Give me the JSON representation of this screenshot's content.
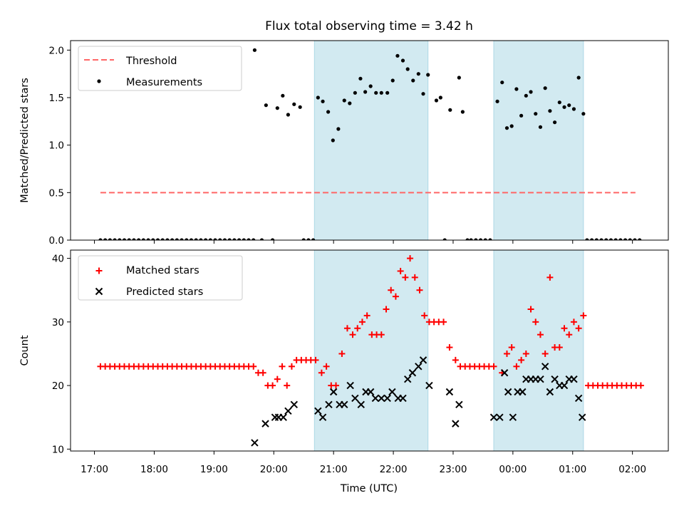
{
  "title": "Flux total observing time = 3.42 h",
  "xlabel": "Time (UTC)",
  "x_tick_labels": [
    "17:00",
    "18:00",
    "19:00",
    "20:00",
    "21:00",
    "22:00",
    "23:00",
    "00:00",
    "01:00",
    "02:00"
  ],
  "colors": {
    "shade": "#add8e6",
    "threshold": "#ff6666",
    "matched": "#ff0000",
    "predicted": "#000000",
    "measurement": "#000000"
  },
  "chart_data": [
    {
      "type": "scatter",
      "ylabel": "Matched/Predicted stars",
      "ylim": [
        0,
        2.1
      ],
      "y_ticks": [
        0.0,
        0.5,
        1.0,
        1.5,
        2.0
      ],
      "y_tick_labels": [
        "0.0",
        "0.5",
        "1.0",
        "1.5",
        "2.0"
      ],
      "x_unit": "hours since 17:00 UTC",
      "xlim": [
        -0.4,
        9.6
      ],
      "shaded_spans": [
        [
          3.68,
          5.58
        ],
        [
          6.68,
          8.18
        ]
      ],
      "legend": {
        "placement": "top-left",
        "threshold_label": "Threshold",
        "measurements_label": "Measurements"
      },
      "threshold": {
        "value": 0.5,
        "x": [
          0.1,
          9.05
        ]
      },
      "measurements": {
        "x": [
          0.1,
          0.18,
          0.26,
          0.34,
          0.42,
          0.5,
          0.58,
          0.66,
          0.74,
          0.82,
          0.9,
          0.98,
          1.06,
          1.14,
          1.22,
          1.3,
          1.38,
          1.46,
          1.54,
          1.62,
          1.7,
          1.78,
          1.86,
          1.94,
          2.02,
          2.1,
          2.18,
          2.26,
          2.34,
          2.42,
          2.5,
          2.58,
          2.66,
          2.8,
          2.98,
          3.5,
          3.58,
          3.66,
          2.68,
          2.87,
          3.06,
          3.15,
          3.24,
          3.34,
          3.44,
          3.74,
          3.82,
          3.91,
          3.99,
          4.08,
          4.18,
          4.27,
          4.36,
          4.45,
          4.53,
          4.62,
          4.71,
          4.8,
          4.9,
          4.99,
          5.07,
          5.16,
          5.24,
          5.33,
          5.42,
          5.5,
          5.58,
          5.95,
          6.1,
          5.72,
          5.79,
          5.86,
          6.16,
          6.24,
          6.3,
          6.38,
          6.46,
          6.54,
          6.62,
          6.74,
          6.82,
          6.9,
          6.98,
          7.06,
          7.14,
          7.22,
          7.3,
          7.38,
          7.46,
          7.54,
          7.62,
          7.7,
          7.78,
          7.86,
          7.94,
          8.02,
          8.1,
          8.18,
          8.24,
          8.32,
          8.4,
          8.48,
          8.56,
          8.64,
          8.72,
          8.8,
          8.88,
          8.96,
          9.04,
          9.12
        ],
        "y": [
          0,
          0,
          0,
          0,
          0,
          0,
          0,
          0,
          0,
          0,
          0,
          0,
          0,
          0,
          0,
          0,
          0,
          0,
          0,
          0,
          0,
          0,
          0,
          0,
          0,
          0,
          0,
          0,
          0,
          0,
          0,
          0,
          0,
          0,
          0,
          0,
          0,
          0,
          2.0,
          1.42,
          1.39,
          1.52,
          1.32,
          1.43,
          1.4,
          1.5,
          1.46,
          1.35,
          1.05,
          1.17,
          1.47,
          1.44,
          1.55,
          1.7,
          1.56,
          1.62,
          1.55,
          1.55,
          1.55,
          1.68,
          1.94,
          1.89,
          1.8,
          1.68,
          1.75,
          1.54,
          1.74,
          1.37,
          1.71,
          1.47,
          1.5,
          0,
          1.35,
          0,
          0,
          0,
          0,
          0,
          0,
          1.46,
          1.66,
          1.18,
          1.2,
          1.59,
          1.31,
          1.52,
          1.56,
          1.33,
          1.19,
          1.6,
          1.36,
          1.24,
          1.45,
          1.4,
          1.42,
          1.38,
          1.71,
          1.33,
          0,
          0,
          0,
          0,
          0,
          0,
          0,
          0,
          0,
          0,
          0,
          0
        ]
      }
    },
    {
      "type": "scatter",
      "ylabel": "Count",
      "ylim": [
        9.7,
        41.3
      ],
      "y_ticks": [
        10,
        20,
        30,
        40
      ],
      "y_tick_labels": [
        "10",
        "20",
        "30",
        "40"
      ],
      "x_unit": "hours since 17:00 UTC",
      "xlim": [
        -0.4,
        9.6
      ],
      "shaded_spans": [
        [
          3.68,
          5.58
        ],
        [
          6.68,
          8.18
        ]
      ],
      "legend": {
        "placement": "top-left",
        "matched_label": "Matched stars",
        "predicted_label": "Predicted stars"
      },
      "series": [
        {
          "name": "Matched stars",
          "marker": "plus",
          "x": [
            0.1,
            0.18,
            0.26,
            0.34,
            0.42,
            0.5,
            0.58,
            0.66,
            0.74,
            0.82,
            0.9,
            0.98,
            1.06,
            1.14,
            1.22,
            1.3,
            1.38,
            1.46,
            1.54,
            1.62,
            1.7,
            1.78,
            1.86,
            1.94,
            2.02,
            2.1,
            2.18,
            2.26,
            2.34,
            2.42,
            2.5,
            2.58,
            2.66,
            2.74,
            2.82,
            2.9,
            2.98,
            3.06,
            3.14,
            3.22,
            3.3,
            3.38,
            3.46,
            3.54,
            3.62,
            3.7,
            3.8,
            3.88,
            3.96,
            4.04,
            4.14,
            4.23,
            4.32,
            4.4,
            4.48,
            4.56,
            4.64,
            4.72,
            4.8,
            4.88,
            4.96,
            5.04,
            5.12,
            5.2,
            5.28,
            5.36,
            5.44,
            5.52,
            5.6,
            5.68,
            5.76,
            5.84,
            5.94,
            6.04,
            6.12,
            6.2,
            6.28,
            6.36,
            6.44,
            6.52,
            6.6,
            6.68,
            6.82,
            6.9,
            6.98,
            7.06,
            7.14,
            7.22,
            7.3,
            7.38,
            7.46,
            7.54,
            7.62,
            7.7,
            7.78,
            7.86,
            7.94,
            8.02,
            8.1,
            8.18,
            8.26,
            8.34,
            8.42,
            8.5,
            8.58,
            8.66,
            8.74,
            8.82,
            8.9,
            8.98,
            9.06,
            9.14
          ],
          "y": [
            23,
            23,
            23,
            23,
            23,
            23,
            23,
            23,
            23,
            23,
            23,
            23,
            23,
            23,
            23,
            23,
            23,
            23,
            23,
            23,
            23,
            23,
            23,
            23,
            23,
            23,
            23,
            23,
            23,
            23,
            23,
            23,
            23,
            22,
            22,
            20,
            20,
            21,
            23,
            20,
            23,
            24,
            24,
            24,
            24,
            24,
            22,
            23,
            20,
            20,
            25,
            29,
            28,
            29,
            30,
            31,
            28,
            28,
            28,
            32,
            35,
            34,
            38,
            37,
            40,
            37,
            35,
            31,
            30,
            30,
            30,
            30,
            26,
            24,
            23,
            23,
            23,
            23,
            23,
            23,
            23,
            23,
            22,
            25,
            26,
            23,
            24,
            25,
            32,
            30,
            28,
            25,
            37,
            26,
            26,
            29,
            28,
            30,
            29,
            31,
            20,
            20,
            20,
            20,
            20,
            20,
            20,
            20,
            20,
            20,
            20,
            20
          ]
        },
        {
          "name": "Predicted stars",
          "marker": "x",
          "x": [
            2.68,
            2.86,
            3.02,
            3.08,
            3.16,
            3.24,
            3.34,
            3.74,
            3.82,
            3.92,
            4.0,
            4.1,
            4.18,
            4.28,
            4.36,
            4.46,
            4.54,
            4.62,
            4.7,
            4.8,
            4.9,
            4.98,
            5.08,
            5.16,
            5.24,
            5.32,
            5.42,
            5.5,
            5.6,
            5.94,
            6.04,
            6.1,
            6.68,
            6.78,
            6.86,
            6.92,
            7.0,
            7.08,
            7.16,
            7.22,
            7.3,
            7.38,
            7.46,
            7.54,
            7.62,
            7.7,
            7.78,
            7.86,
            7.94,
            8.02,
            8.1,
            8.16
          ],
          "y": [
            11,
            14,
            15,
            15,
            15,
            16,
            17,
            16,
            15,
            17,
            19,
            17,
            17,
            20,
            18,
            17,
            19,
            19,
            18,
            18,
            18,
            19,
            18,
            18,
            21,
            22,
            23,
            24,
            20,
            19,
            14,
            17,
            15,
            15,
            22,
            19,
            15,
            19,
            19,
            21,
            21,
            21,
            21,
            23,
            19,
            21,
            20,
            20,
            21,
            21,
            18,
            15
          ]
        }
      ]
    }
  ]
}
